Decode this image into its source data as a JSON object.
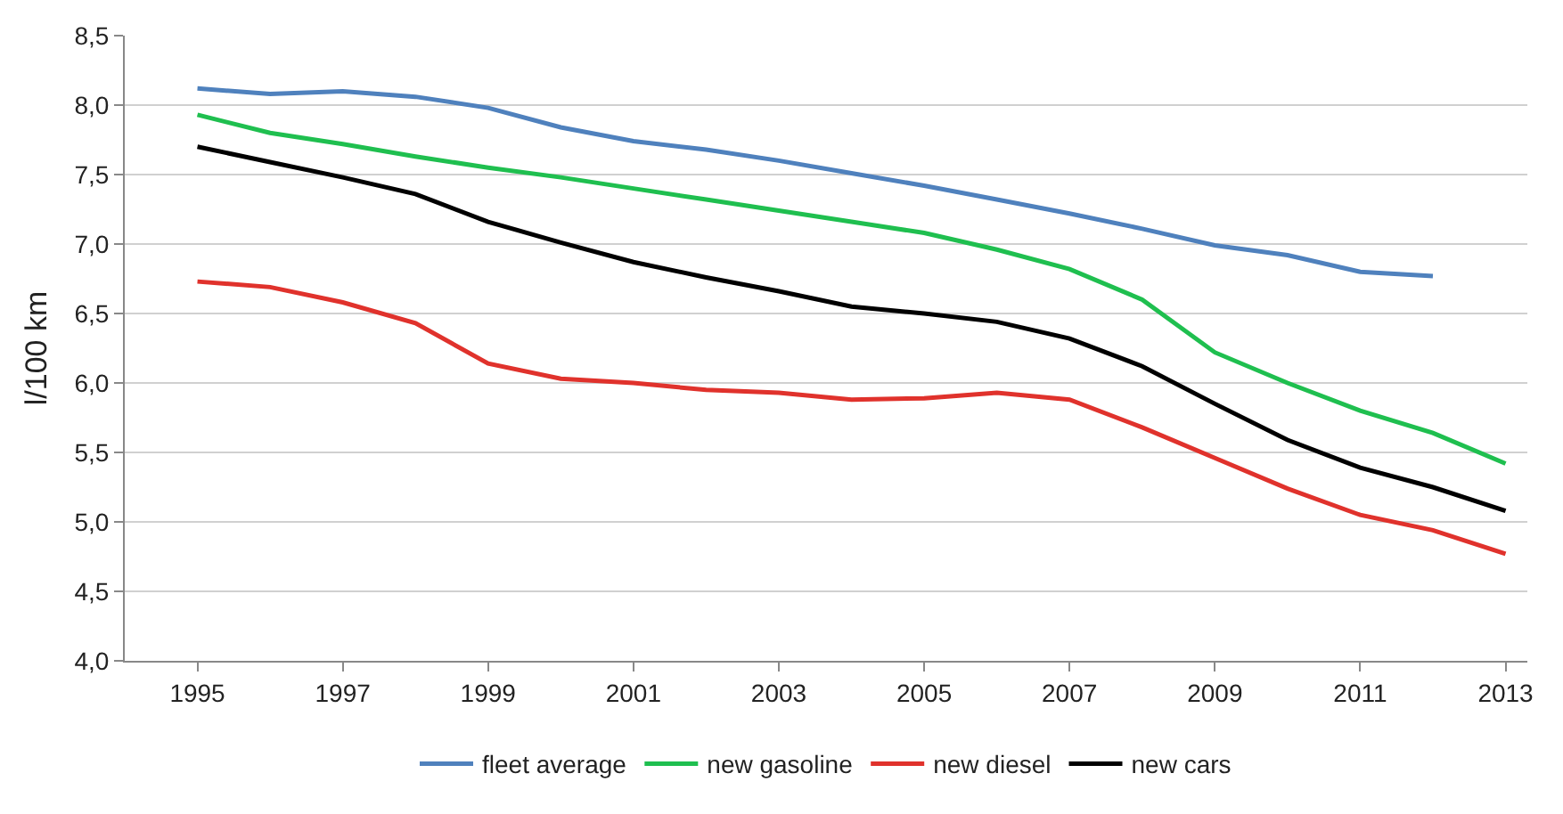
{
  "chart_data": {
    "type": "line",
    "ylabel": "l/100 km",
    "x": [
      1995,
      1996,
      1997,
      1998,
      1999,
      2000,
      2001,
      2002,
      2003,
      2004,
      2005,
      2006,
      2007,
      2008,
      2009,
      2010,
      2011,
      2012,
      2013
    ],
    "series": [
      {
        "name": "fleet average",
        "color": "#4f81bd",
        "values": [
          8.12,
          8.08,
          8.1,
          8.06,
          7.98,
          7.84,
          7.74,
          7.68,
          7.6,
          7.51,
          7.42,
          7.32,
          7.22,
          7.11,
          6.99,
          6.92,
          6.8,
          6.77,
          null
        ]
      },
      {
        "name": "new gasoline",
        "color": "#1fbf4f",
        "values": [
          7.93,
          7.8,
          7.72,
          7.63,
          7.55,
          7.48,
          7.4,
          7.32,
          7.24,
          7.16,
          7.08,
          6.96,
          6.82,
          6.6,
          6.22,
          6.0,
          5.8,
          5.64,
          5.42
        ]
      },
      {
        "name": "new diesel",
        "color": "#e0322c",
        "values": [
          6.73,
          6.69,
          6.58,
          6.43,
          6.14,
          6.03,
          6.0,
          5.95,
          5.93,
          5.88,
          5.89,
          5.93,
          5.88,
          5.68,
          5.46,
          5.24,
          5.05,
          4.94,
          4.77
        ]
      },
      {
        "name": "new cars",
        "color": "#000000",
        "values": [
          7.7,
          7.59,
          7.48,
          7.36,
          7.16,
          7.01,
          6.87,
          6.76,
          6.66,
          6.55,
          6.5,
          6.44,
          6.32,
          6.12,
          5.85,
          5.59,
          5.39,
          5.25,
          5.08
        ]
      }
    ],
    "xlim": [
      1994,
      2013.3
    ],
    "xticks": [
      1995,
      1997,
      1999,
      2001,
      2003,
      2005,
      2007,
      2009,
      2011,
      2013
    ],
    "ylim": [
      4,
      8.5
    ],
    "yticks": [
      {
        "value": 4,
        "label": "4,0"
      },
      {
        "value": 4.5,
        "label": "4,5"
      },
      {
        "value": 5,
        "label": "5,0"
      },
      {
        "value": 5.5,
        "label": "5,5"
      },
      {
        "value": 6,
        "label": "6,0"
      },
      {
        "value": 6.5,
        "label": "6,5"
      },
      {
        "value": 7,
        "label": "7,0"
      },
      {
        "value": 7.5,
        "label": "7,5"
      },
      {
        "value": 8,
        "label": "8,0"
      },
      {
        "value": 8.5,
        "label": "8,5"
      }
    ],
    "grid": "y",
    "legend": "bottom",
    "marker": "none",
    "line_style": "solid"
  }
}
